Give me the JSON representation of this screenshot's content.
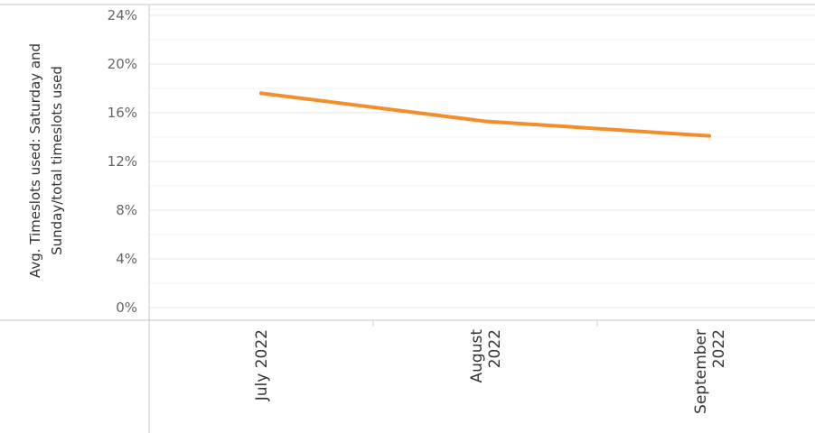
{
  "chart_data": {
    "type": "line",
    "ylabel": [
      "Avg. Timeslots used: Saturday and",
      "Sunday/total timeslots used"
    ],
    "xlabel": "",
    "y_tick_labels": [
      "0%",
      "4%",
      "8%",
      "12%",
      "16%",
      "20%",
      "24%"
    ],
    "y_ticks": [
      0,
      4,
      8,
      12,
      16,
      20,
      24
    ],
    "ylim": [
      0,
      24.5
    ],
    "categories": [
      [
        "July 2022"
      ],
      [
        "August",
        "2022"
      ],
      [
        "September",
        "2022"
      ]
    ],
    "series": [
      {
        "color": "#f28e2b",
        "values": [
          17.6,
          15.3,
          14.1
        ]
      }
    ],
    "grid": true
  }
}
